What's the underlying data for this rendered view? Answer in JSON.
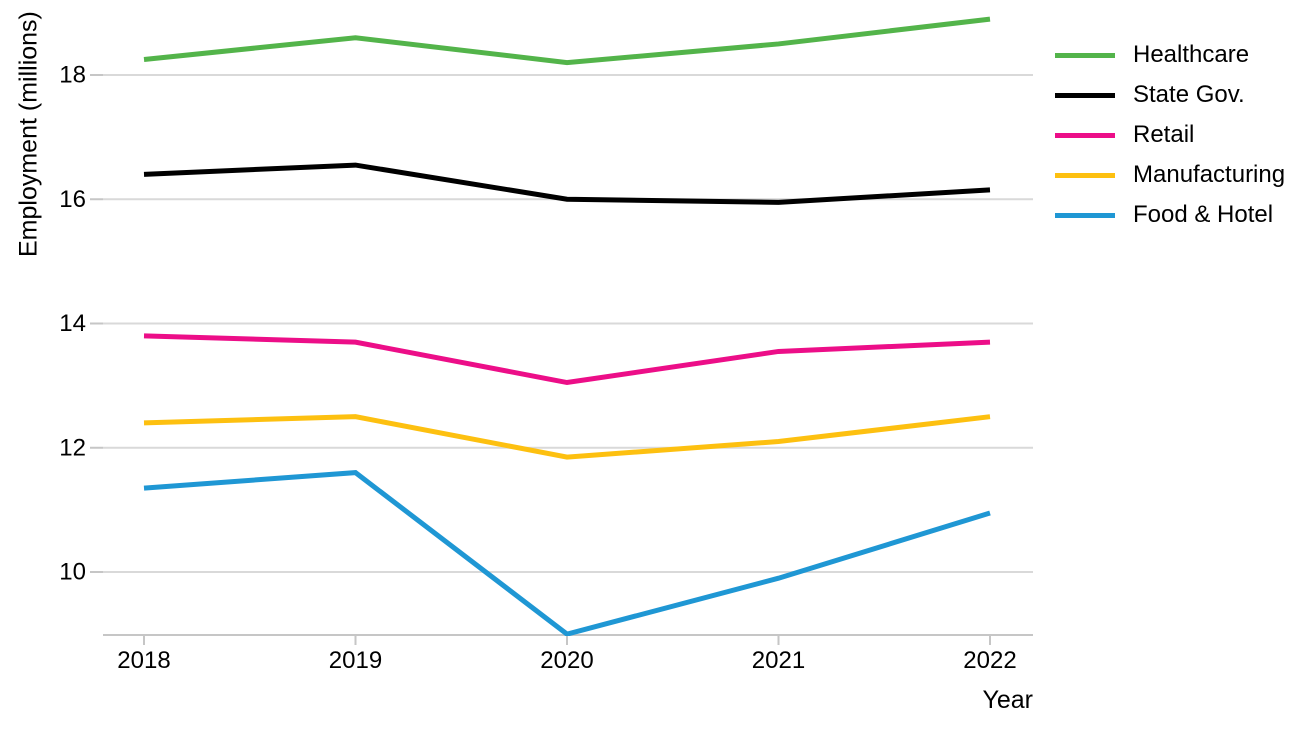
{
  "chart_data": {
    "type": "line",
    "title": "",
    "xlabel": "Year",
    "ylabel": "Employment (millions)",
    "x": [
      2018,
      2019,
      2020,
      2021,
      2022
    ],
    "series": [
      {
        "name": "Healthcare",
        "color": "#53b44a",
        "values": [
          18.25,
          18.6,
          18.2,
          18.5,
          18.9
        ]
      },
      {
        "name": "State Gov.",
        "color": "#000000",
        "values": [
          16.4,
          16.55,
          16.0,
          15.95,
          16.15
        ]
      },
      {
        "name": "Retail",
        "color": "#ec0e88",
        "values": [
          13.8,
          13.7,
          13.05,
          13.55,
          13.7
        ]
      },
      {
        "name": "Manufacturing",
        "color": "#fdc010",
        "values": [
          12.4,
          12.5,
          11.85,
          12.1,
          12.5
        ]
      },
      {
        "name": "Food & Hotel",
        "color": "#1f97d4",
        "values": [
          11.35,
          11.6,
          9.0,
          9.9,
          10.95
        ]
      }
    ],
    "yticks": [
      10,
      12,
      14,
      16,
      18
    ],
    "ylim": [
      9.0,
      19.1
    ],
    "grid": "horizontal",
    "legend_position": "right",
    "colors": {
      "gridline": "#d9d9d9",
      "axis": "#c6c6c6",
      "tick": "#c6c6c6",
      "text": "#000000",
      "background": "#ffffff"
    }
  }
}
